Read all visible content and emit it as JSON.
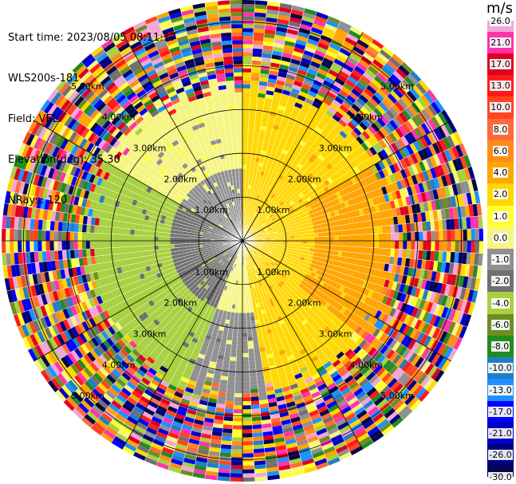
{
  "header": {
    "start_time": "Start time: 2023/08/05 08:11:17",
    "site": "WLS200s-181",
    "field": "Field: VEL",
    "elevation": "Elevation(deg): 35.30",
    "nrays": "NRays: 120"
  },
  "colorbar": {
    "unit": "m/s",
    "ticks": [
      "26.0",
      "21.0",
      "17.0",
      "13.0",
      "10.0",
      "8.0",
      "6.0",
      "4.0",
      "2.0",
      "1.0",
      "0.0",
      "-1.0",
      "-2.0",
      "-4.0",
      "-6.0",
      "-8.0",
      "-10.0",
      "-13.0",
      "-17.0",
      "-21.0",
      "-26.0",
      "-30.0"
    ],
    "colors": [
      "#f2a6d8",
      "#ff33aa",
      "#dd0022",
      "#ff1a1a",
      "#ff4422",
      "#ff6a3a",
      "#ff8c1a",
      "#ffa500",
      "#ffd700",
      "#ffff33",
      "#f5f580",
      "#909090",
      "#707070",
      "#a8d040",
      "#6b8e23",
      "#228b22",
      "#1e7fc8",
      "#1e90ff",
      "#0000ff",
      "#0000c0",
      "#000080",
      "#06064a"
    ]
  },
  "chart_data": {
    "type": "ppi",
    "field": "VEL",
    "nrays": 120,
    "range_rings": [
      {
        "label": "1.00km",
        "range_km": 1.0
      },
      {
        "label": "2.00km",
        "range_km": 2.0
      },
      {
        "label": "3.00km",
        "range_km": 3.0
      },
      {
        "label": "4.00km",
        "range_km": 4.0
      },
      {
        "label": "5.00km",
        "range_km": 5.0
      }
    ],
    "max_range_km": 5.5,
    "azimuth_lines_deg": [
      0,
      30,
      60,
      90,
      120,
      150,
      180,
      210,
      240,
      270,
      300,
      330
    ],
    "value_range": [
      -30.0,
      26.0
    ],
    "clean_range_km": 3.2,
    "sectors": [
      {
        "az_from": 300,
        "az_to": 360,
        "velocity_near": -1.0,
        "velocity_far": 0.0
      },
      {
        "az_from": 0,
        "az_to": 60,
        "velocity_near": 2.0,
        "velocity_far": 2.0
      },
      {
        "az_from": 60,
        "az_to": 130,
        "velocity_near": 2.0,
        "velocity_far": 4.0
      },
      {
        "az_from": 130,
        "az_to": 170,
        "velocity_near": 2.0,
        "velocity_far": 2.0
      },
      {
        "az_from": 170,
        "az_to": 200,
        "velocity_near": 0.0,
        "velocity_far": -1.0
      },
      {
        "az_from": 200,
        "az_to": 300,
        "velocity_near": -2.0,
        "velocity_far": -4.0
      }
    ]
  }
}
